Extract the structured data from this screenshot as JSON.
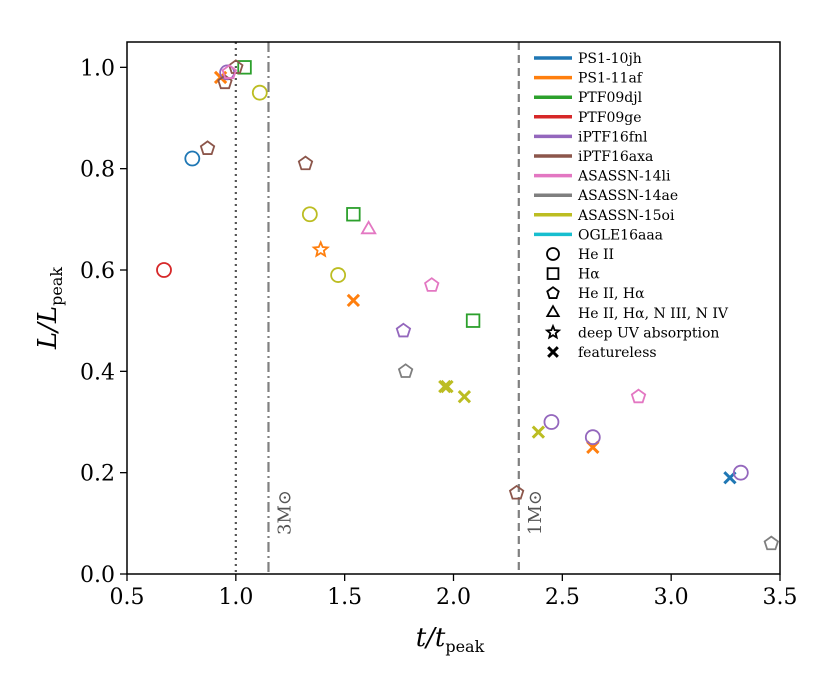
{
  "chart_data": {
    "type": "scatter",
    "xlabel": {
      "main": "t/t",
      "sub": "peak"
    },
    "ylabel": {
      "main": "L/L",
      "sub": "peak"
    },
    "xlim": [
      0.5,
      3.5
    ],
    "ylim": [
      0.0,
      1.05
    ],
    "x_ticks": [
      "0.5",
      "1.0",
      "1.5",
      "2.0",
      "2.5",
      "3.0",
      "3.5"
    ],
    "y_ticks": [
      "0.0",
      "0.2",
      "0.4",
      "0.6",
      "0.8",
      "1.0"
    ],
    "grid": false,
    "legend_position": "top-right",
    "vlines": [
      {
        "x": 1.0,
        "style": "dotted",
        "color": "#555555",
        "label": ""
      },
      {
        "x": 1.15,
        "style": "dashdot",
        "color": "#808080",
        "label": "3M⊙"
      },
      {
        "x": 2.3,
        "style": "dashed",
        "color": "#808080",
        "label": "1M⊙"
      }
    ],
    "series": [
      {
        "name": "PS1-10jh",
        "color": "#1f77b4"
      },
      {
        "name": "PS1-11af",
        "color": "#ff7f0e"
      },
      {
        "name": "PTF09djl",
        "color": "#2ca02c"
      },
      {
        "name": "PTF09ge",
        "color": "#d62728"
      },
      {
        "name": "iPTF16fnl",
        "color": "#9467bd"
      },
      {
        "name": "iPTF16axa",
        "color": "#8c564b"
      },
      {
        "name": "ASASSN-14li",
        "color": "#e377c2"
      },
      {
        "name": "ASASSN-14ae",
        "color": "#7f7f7f"
      },
      {
        "name": "ASASSN-15oi",
        "color": "#bcbd22"
      },
      {
        "name": "OGLE16aaa",
        "color": "#17becf"
      }
    ],
    "markers": [
      {
        "label": "He II",
        "shape": "circle"
      },
      {
        "label": "Hα",
        "shape": "square"
      },
      {
        "label": "He II, Hα",
        "shape": "pentagon"
      },
      {
        "label": "He II, Hα, N III, N IV",
        "shape": "triangle"
      },
      {
        "label": "deep UV absorption",
        "shape": "star"
      },
      {
        "label": "featureless",
        "shape": "x"
      }
    ],
    "points": [
      {
        "series": 0,
        "shape": "circle",
        "x": 0.8,
        "y": 0.82
      },
      {
        "series": 0,
        "shape": "x",
        "x": 3.27,
        "y": 0.19
      },
      {
        "series": 1,
        "shape": "x",
        "x": 0.93,
        "y": 0.98
      },
      {
        "series": 1,
        "shape": "star",
        "x": 1.39,
        "y": 0.64
      },
      {
        "series": 1,
        "shape": "x",
        "x": 1.54,
        "y": 0.54
      },
      {
        "series": 1,
        "shape": "x",
        "x": 2.64,
        "y": 0.25
      },
      {
        "series": 2,
        "shape": "square",
        "x": 1.04,
        "y": 1.0
      },
      {
        "series": 2,
        "shape": "square",
        "x": 1.54,
        "y": 0.71
      },
      {
        "series": 2,
        "shape": "square",
        "x": 2.09,
        "y": 0.5
      },
      {
        "series": 3,
        "shape": "circle",
        "x": 0.67,
        "y": 0.6
      },
      {
        "series": 4,
        "shape": "circle",
        "x": 0.96,
        "y": 0.99
      },
      {
        "series": 4,
        "shape": "pentagon",
        "x": 1.77,
        "y": 0.48
      },
      {
        "series": 4,
        "shape": "circle",
        "x": 2.45,
        "y": 0.3
      },
      {
        "series": 4,
        "shape": "circle",
        "x": 2.64,
        "y": 0.27
      },
      {
        "series": 4,
        "shape": "circle",
        "x": 3.32,
        "y": 0.2
      },
      {
        "series": 5,
        "shape": "pentagon",
        "x": 0.87,
        "y": 0.84
      },
      {
        "series": 5,
        "shape": "pentagon",
        "x": 0.95,
        "y": 0.97
      },
      {
        "series": 5,
        "shape": "pentagon",
        "x": 1.0,
        "y": 1.0
      },
      {
        "series": 5,
        "shape": "pentagon",
        "x": 1.32,
        "y": 0.81
      },
      {
        "series": 5,
        "shape": "pentagon",
        "x": 2.29,
        "y": 0.16
      },
      {
        "series": 6,
        "shape": "pentagon",
        "x": 0.97,
        "y": 0.99
      },
      {
        "series": 6,
        "shape": "triangle",
        "x": 1.61,
        "y": 0.68
      },
      {
        "series": 6,
        "shape": "pentagon",
        "x": 1.9,
        "y": 0.57
      },
      {
        "series": 6,
        "shape": "pentagon",
        "x": 2.85,
        "y": 0.35
      },
      {
        "series": 7,
        "shape": "pentagon",
        "x": 1.78,
        "y": 0.4
      },
      {
        "series": 7,
        "shape": "pentagon",
        "x": 3.46,
        "y": 0.06
      },
      {
        "series": 8,
        "shape": "circle",
        "x": 1.11,
        "y": 0.95
      },
      {
        "series": 8,
        "shape": "circle",
        "x": 1.34,
        "y": 0.71
      },
      {
        "series": 8,
        "shape": "circle",
        "x": 1.47,
        "y": 0.59
      },
      {
        "series": 8,
        "shape": "x",
        "x": 1.96,
        "y": 0.37
      },
      {
        "series": 8,
        "shape": "x",
        "x": 1.97,
        "y": 0.37
      },
      {
        "series": 8,
        "shape": "x",
        "x": 2.05,
        "y": 0.35
      },
      {
        "series": 8,
        "shape": "x",
        "x": 2.39,
        "y": 0.28
      }
    ]
  }
}
